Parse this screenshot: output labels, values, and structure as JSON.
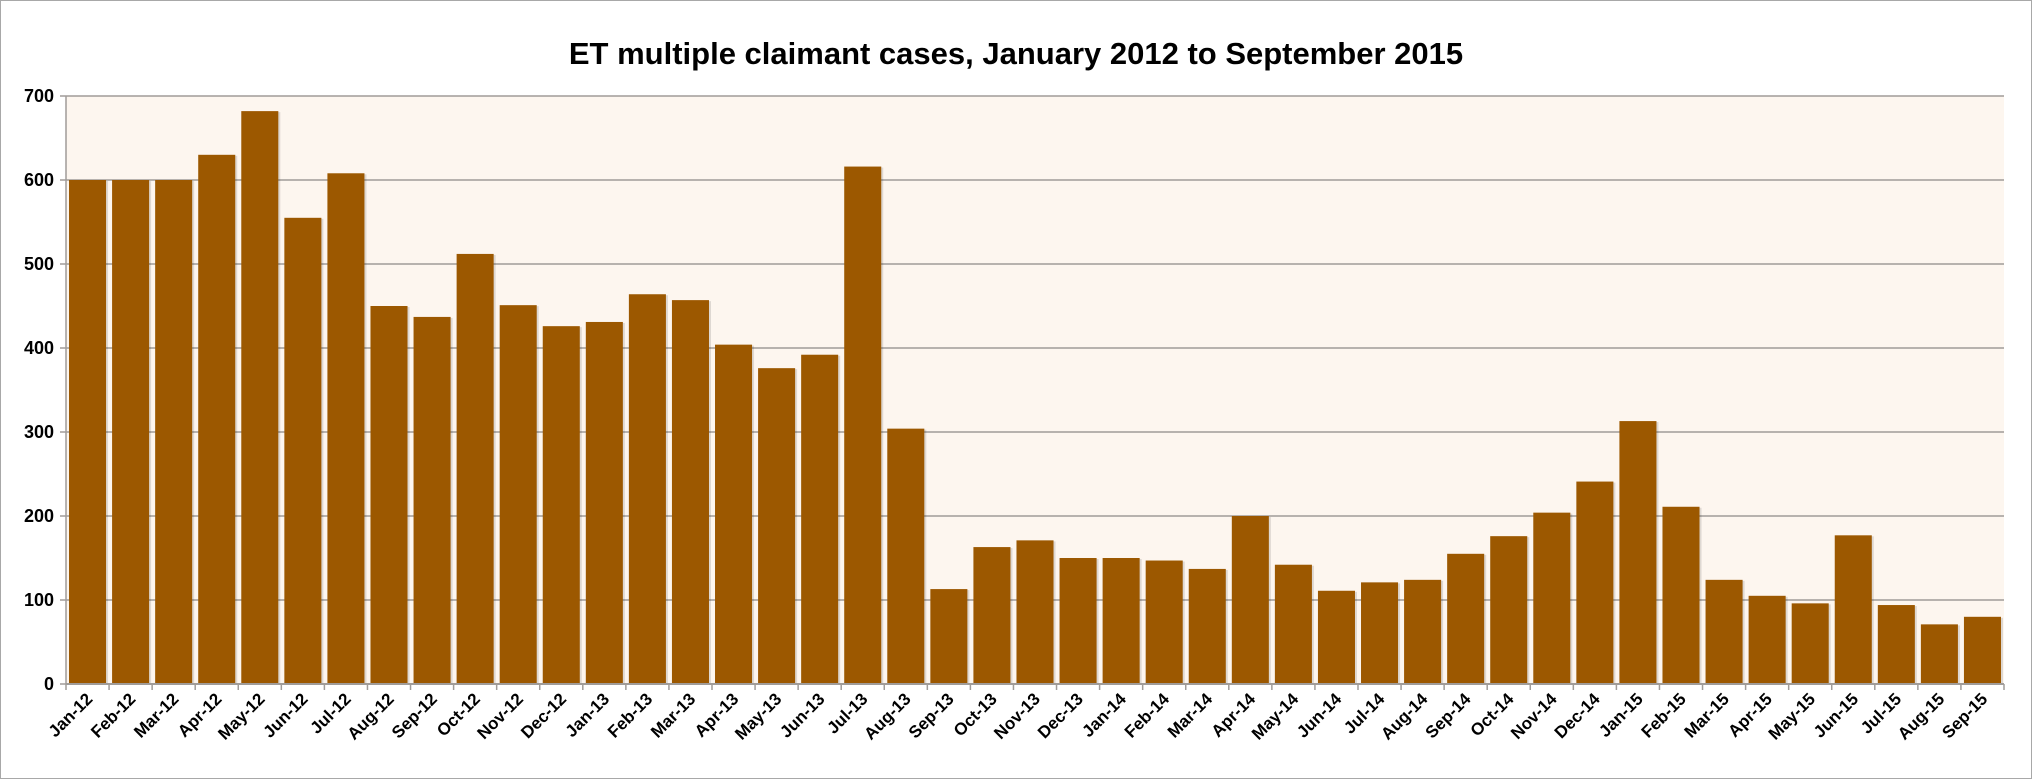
{
  "chart_data": {
    "type": "bar",
    "title": "ET multiple claimant cases, January 2012 to September 2015",
    "xlabel": "",
    "ylabel": "",
    "ylim": [
      0,
      700
    ],
    "yticks": [
      0,
      100,
      200,
      300,
      400,
      500,
      600,
      700
    ],
    "grid": true,
    "legend": "none",
    "categories": [
      "Jan-12",
      "Feb-12",
      "Mar-12",
      "Apr-12",
      "May-12",
      "Jun-12",
      "Jul-12",
      "Aug-12",
      "Sep-12",
      "Oct-12",
      "Nov-12",
      "Dec-12",
      "Jan-13",
      "Feb-13",
      "Mar-13",
      "Apr-13",
      "May-13",
      "Jun-13",
      "Jul-13",
      "Aug-13",
      "Sep-13",
      "Oct-13",
      "Nov-13",
      "Dec-13",
      "Jan-14",
      "Feb-14",
      "Mar-14",
      "Apr-14",
      "May-14",
      "Jun-14",
      "Jul-14",
      "Aug-14",
      "Sep-14",
      "Oct-14",
      "Nov-14",
      "Dec-14",
      "Jan-15",
      "Feb-15",
      "Mar-15",
      "Apr-15",
      "May-15",
      "Jun-15",
      "Jul-15",
      "Aug-15",
      "Sep-15"
    ],
    "values": [
      600,
      600,
      600,
      630,
      682,
      555,
      608,
      450,
      437,
      512,
      451,
      426,
      431,
      464,
      457,
      404,
      376,
      392,
      616,
      304,
      113,
      163,
      171,
      150,
      150,
      147,
      137,
      200,
      142,
      111,
      121,
      124,
      155,
      176,
      204,
      241,
      313,
      211,
      124,
      105,
      96,
      177,
      94,
      71,
      80
    ],
    "colors": {
      "bar": "#9c5800",
      "plot_bg": "#fdf6ef",
      "grid": "#a09c99"
    }
  }
}
